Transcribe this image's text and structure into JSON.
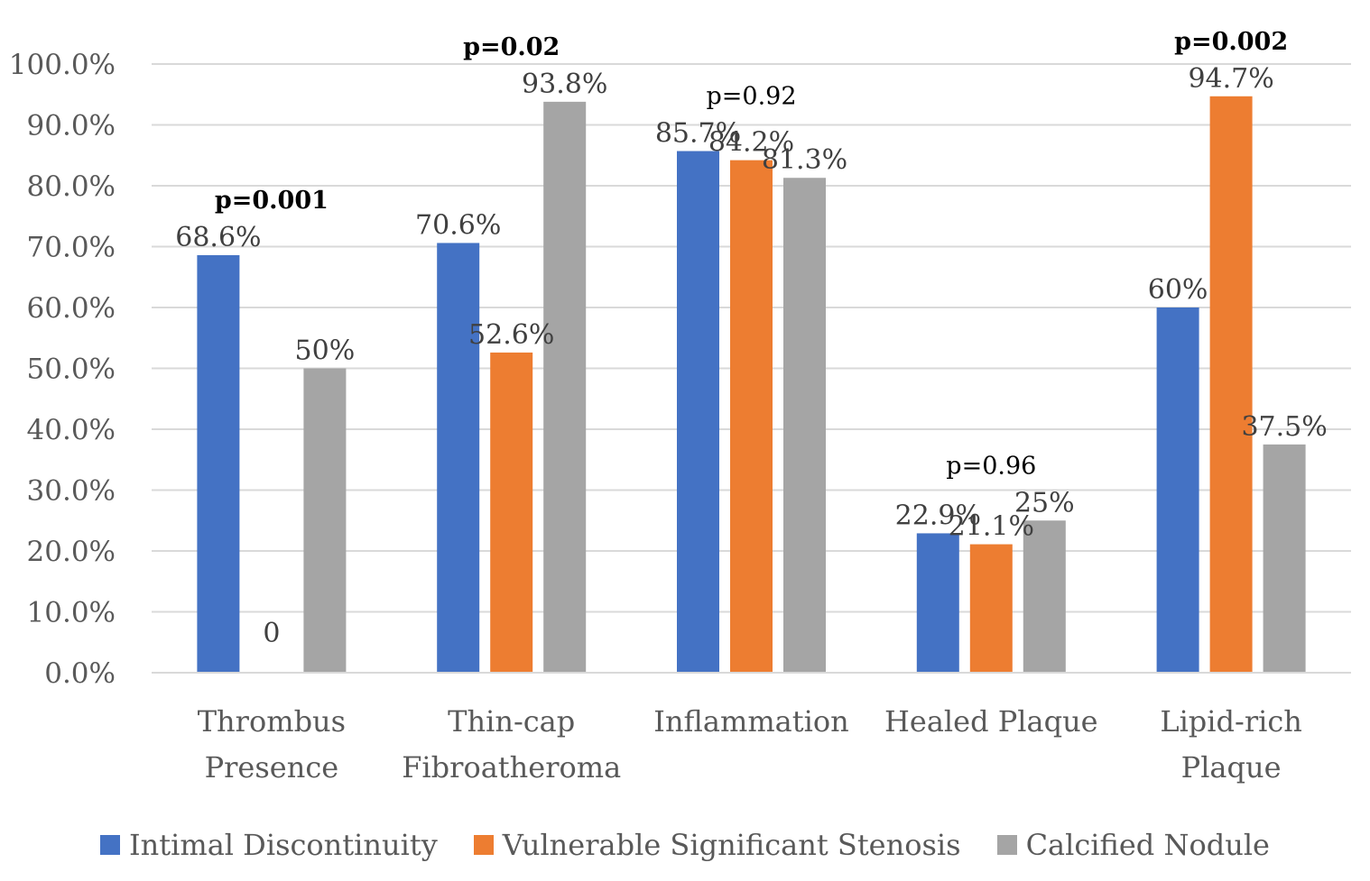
{
  "chart_data": {
    "type": "bar",
    "categories": [
      [
        "Thrombus",
        "Presence"
      ],
      [
        "Thin-cap",
        "Fibroatheroma"
      ],
      [
        "Inflammation"
      ],
      [
        "Healed Plaque"
      ],
      [
        "Lipid-rich",
        "Plaque"
      ]
    ],
    "series": [
      {
        "name": "Intimal Discontinuity",
        "color": "#4472C4",
        "values": [
          68.6,
          70.6,
          85.7,
          22.9,
          60.0
        ],
        "labels": [
          "68.6%",
          "70.6%",
          "85.7%",
          "22.9%",
          "60%"
        ]
      },
      {
        "name": "Vulnerable Significant Stenosis",
        "color": "#ED7D31",
        "values": [
          0,
          52.6,
          84.2,
          21.1,
          94.7
        ],
        "labels": [
          "0",
          "52.6%",
          "84.2%",
          "21.1%",
          "94.7%"
        ]
      },
      {
        "name": "Calcified Nodule",
        "color": "#A5A5A5",
        "values": [
          50.0,
          93.8,
          81.3,
          25.0,
          37.5
        ],
        "labels": [
          "50%",
          "93.8%",
          "81.3%",
          "25%",
          "37.5%"
        ]
      }
    ],
    "p_values": [
      {
        "text": "p=0.001",
        "bold": true
      },
      {
        "text": "p=0.02",
        "bold": true
      },
      {
        "text": "p=0.92",
        "bold": false
      },
      {
        "text": "p=0.96",
        "bold": false
      },
      {
        "text": "p=0.002",
        "bold": true
      }
    ],
    "yticks": [
      "0.0%",
      "10.0%",
      "20.0%",
      "30.0%",
      "40.0%",
      "50.0%",
      "60.0%",
      "70.0%",
      "80.0%",
      "90.0%",
      "100.0%"
    ],
    "ylim": [
      0,
      100
    ],
    "grid": true,
    "legend_position": "bottom",
    "title": "",
    "xlabel": "",
    "ylabel": ""
  }
}
